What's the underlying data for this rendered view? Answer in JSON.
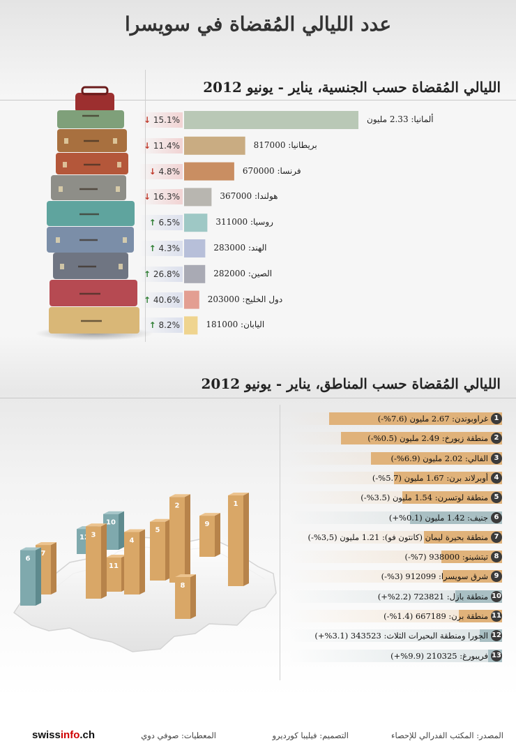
{
  "title": "عدد الليالي المُقضاة في سويسرا",
  "chart_data": [
    {
      "type": "bar",
      "title": "الليالي المُقضاة حسب الجنسية، يناير - يونيو 2012",
      "categories": [
        "ألمانيا",
        "بريطانيا",
        "فرنسا",
        "هولندا",
        "روسيا",
        "الهند",
        "الصين",
        "دول الخليج",
        "اليابان"
      ],
      "value_labels": [
        "ألمانيا: 2.33 مليون",
        "بريطانيا: 817000",
        "فرنسا: 670000",
        "هولندا: 367000",
        "روسيا: 311000",
        "الهند: 283000",
        "الصين: 282000",
        "دول الخليج: 203000",
        "اليابان: 181000"
      ],
      "values": [
        2330000,
        817000,
        670000,
        367000,
        311000,
        283000,
        282000,
        203000,
        181000
      ],
      "change_labels": [
        "15.1%",
        "11.4%",
        "4.8%",
        "16.3%",
        "6.5%",
        "4.3%",
        "26.8%",
        "40.6%",
        "8.2%"
      ],
      "change_pct": [
        -15.1,
        -11.4,
        -4.8,
        -16.3,
        6.5,
        4.3,
        26.8,
        40.6,
        8.2
      ],
      "colors": [
        "#b9c8b6",
        "#c9ac82",
        "#c98e62",
        "#b8b6b0",
        "#9ec8c5",
        "#b7bfd9",
        "#a9aab4",
        "#e39e92",
        "#efd48f"
      ],
      "arrow_down": "#c0392b",
      "arrow_up": "#2e7d32"
    },
    {
      "type": "bar",
      "title": "الليالي المُقضاة حسب المناطق، يناير - يونيو 2012",
      "numbers": [
        "1",
        "2",
        "3",
        "4",
        "5",
        "6",
        "7",
        "8",
        "9",
        "10",
        "11",
        "12",
        "13"
      ],
      "labels": [
        "غراوبوندن: 2.67 مليون (7.6%-)",
        "منطقة زيورخ: 2.49 مليون (0.5%-)",
        "الفالي: 2.02 مليون (6.9%-)",
        "أوبرلاند برن: 1.67 مليون (5.7%-)",
        "منطقة لوتسرن: 1.54 مليون (3.5%-)",
        "جنيف: 1.42 مليون (0.1%+)",
        "منطقة بحيرة ليمان (كانتون فو): 1.21 مليون (3,5%-)",
        "تيتشينو: 938000 (7%-)",
        "شرق سويسرا: 912099 (3%-)",
        "منطقة بازل: 723821 (2.2%+)",
        "منطقة برن: 667189 (1.4%-)",
        "الجورا ومنطقة البحيرات الثلاث: 343523 (3.1%+)",
        "فريبورغ: 210325 (9.9%+)"
      ],
      "values": [
        2670000,
        2490000,
        2020000,
        1670000,
        1540000,
        1420000,
        1210000,
        938000,
        912099,
        723821,
        667189,
        343523,
        210325
      ],
      "change_pct": [
        -7.6,
        -0.5,
        -6.9,
        -5.7,
        -3.5,
        0.1,
        -3.5,
        -7,
        -3,
        2.2,
        -1.4,
        3.1,
        9.9
      ],
      "color_decrease": "#e0b27a",
      "color_increase": "#a9bfc3",
      "map_color_decrease": "#d9a767",
      "map_color_increase": "#7fa9ad"
    }
  ],
  "footer": {
    "source": "المصدر: المكتب الفدرالي للإحصاء",
    "design": "التصميم: فيليبا كورديرو",
    "data": "المعطيات: صوفي دوي",
    "logo_a": "swiss",
    "logo_b": "info",
    "logo_c": ".ch"
  }
}
